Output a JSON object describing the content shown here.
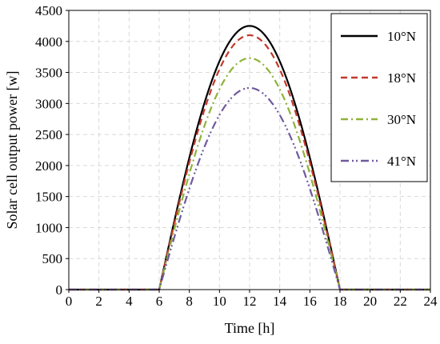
{
  "chart_data": {
    "type": "line",
    "title": "",
    "xlabel": "Time [h]",
    "ylabel": "Solar cell output power [w]",
    "xlim": [
      0,
      24
    ],
    "ylim": [
      0,
      4500
    ],
    "x_ticks": [
      "0",
      "2",
      "4",
      "6",
      "8",
      "10",
      "12",
      "14",
      "16",
      "18",
      "20",
      "22",
      "24"
    ],
    "y_ticks": [
      "0",
      "500",
      "1000",
      "1500",
      "2000",
      "2500",
      "3000",
      "3500",
      "4000",
      "4500"
    ],
    "grid": true,
    "legend_position": "top-right",
    "series": [
      {
        "name": "10°N",
        "color": "#000000",
        "style": "solid",
        "sunrise": 6,
        "sunset": 18,
        "peak_x": 12,
        "peak_y": 4250
      },
      {
        "name": "18°N",
        "color": "#c0392b",
        "style": "dashed",
        "sunrise": 6,
        "sunset": 18,
        "peak_x": 12,
        "peak_y": 4100
      },
      {
        "name": "30°N",
        "color": "#8db33a",
        "style": "dashdot",
        "sunrise": 6,
        "sunset": 18,
        "peak_x": 12,
        "peak_y": 3730
      },
      {
        "name": "41°N",
        "color": "#6f5a9e",
        "style": "dashdotdot",
        "sunrise": 6,
        "sunset": 18,
        "peak_x": 12,
        "peak_y": 3250
      }
    ]
  }
}
